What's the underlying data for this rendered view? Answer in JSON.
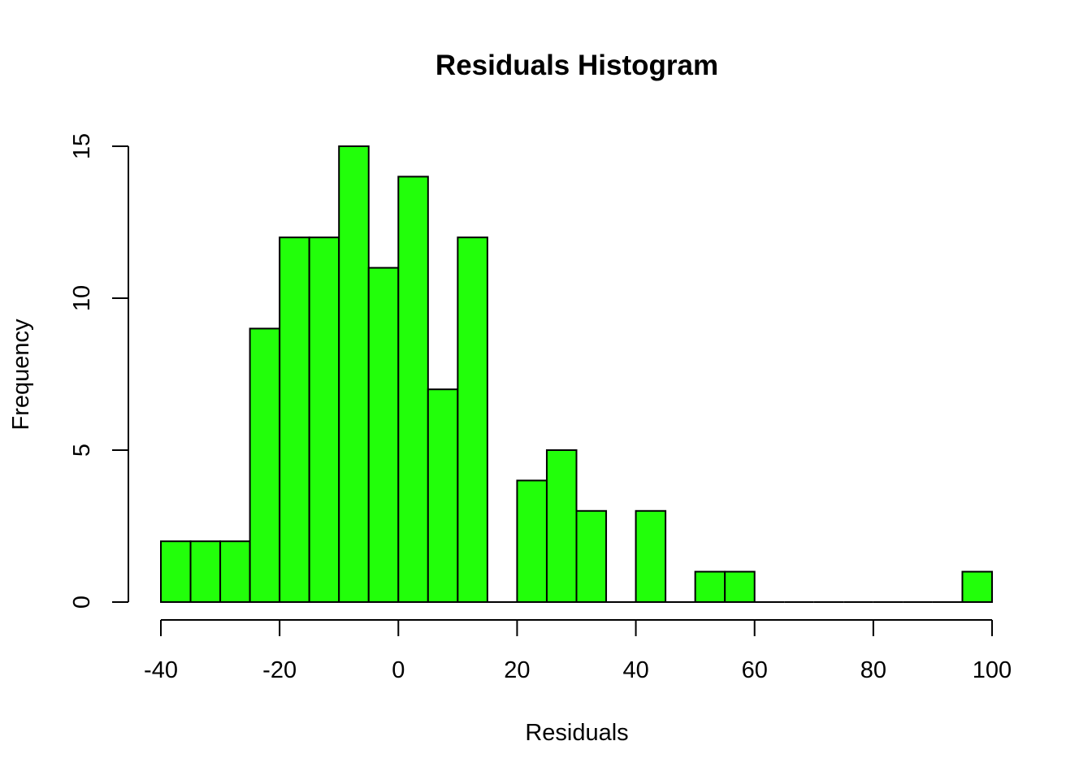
{
  "chart_data": {
    "type": "bar",
    "subtype": "histogram",
    "title": "Residuals Histogram",
    "xlabel": "Residuals",
    "ylabel": "Frequency",
    "bin_width": 5,
    "bin_starts": [
      -40,
      -35,
      -30,
      -25,
      -20,
      -15,
      -10,
      -5,
      0,
      5,
      10,
      15,
      20,
      25,
      30,
      35,
      40,
      45,
      50,
      55,
      60,
      65,
      70,
      75,
      80,
      85,
      90,
      95
    ],
    "values": [
      2,
      2,
      2,
      9,
      12,
      12,
      15,
      11,
      14,
      7,
      12,
      0,
      4,
      5,
      3,
      0,
      3,
      0,
      1,
      1,
      0,
      0,
      0,
      0,
      0,
      0,
      0,
      1
    ],
    "xlim": [
      -40,
      100
    ],
    "ylim": [
      0,
      15
    ],
    "x_ticks": [
      -40,
      -20,
      0,
      20,
      40,
      60,
      80,
      100
    ],
    "x_tick_labels": [
      "-40",
      "-20",
      "0",
      "20",
      "40",
      "60",
      "80",
      "100"
    ],
    "y_ticks": [
      0,
      5,
      10,
      15
    ],
    "y_tick_labels": [
      "0",
      "5",
      "10",
      "15"
    ],
    "bar_color": "#22ff0a",
    "edge_color": "#000000",
    "grid": false,
    "legend": "none"
  }
}
